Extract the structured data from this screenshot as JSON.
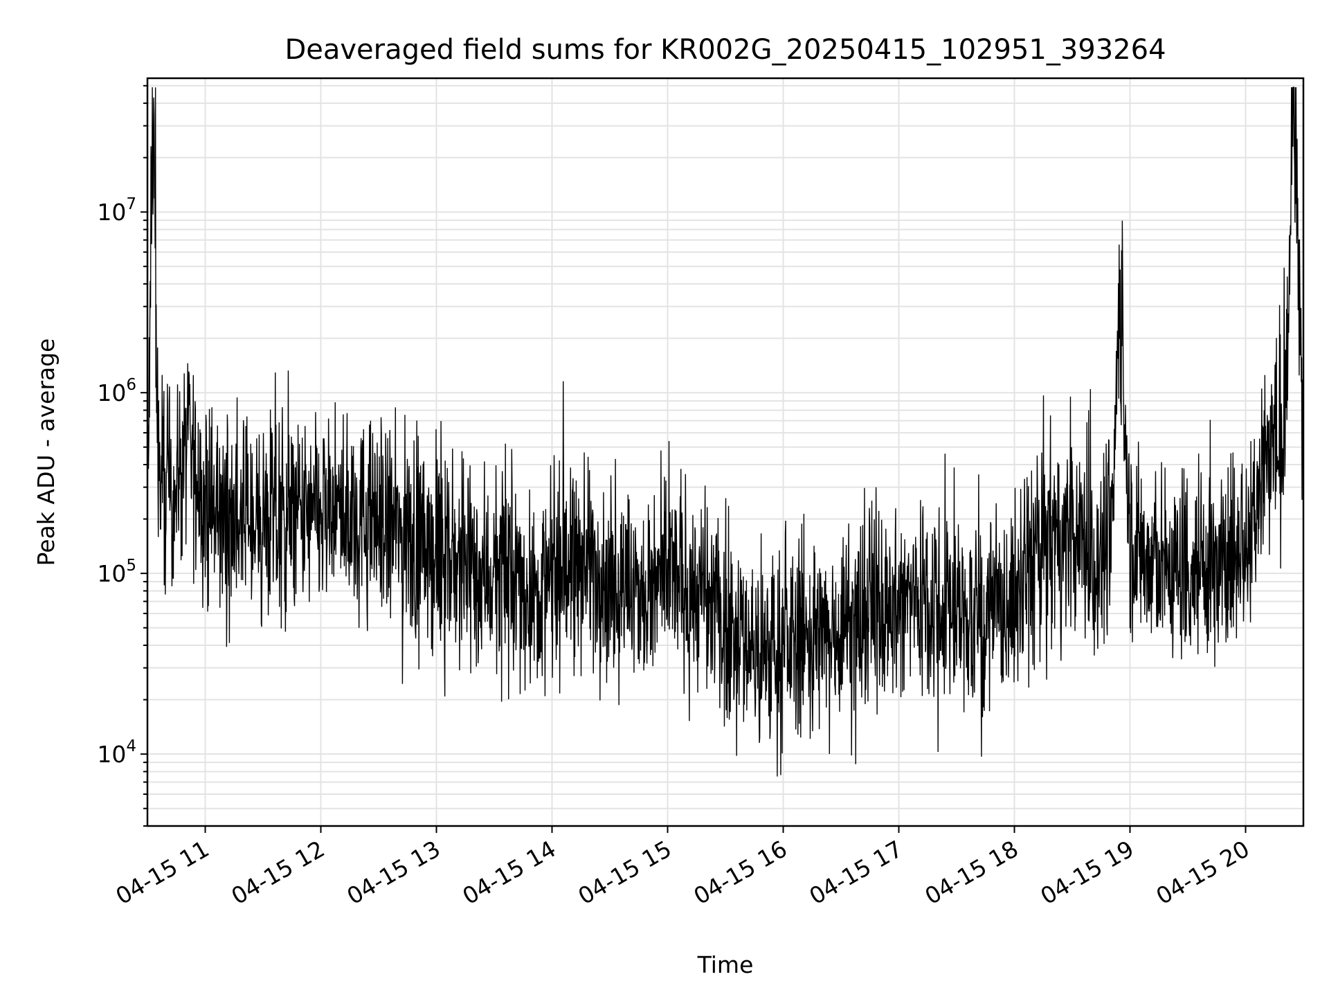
{
  "chart_data": {
    "type": "line",
    "title": "Deaveraged field sums for KR002G_20250415_102951_393264",
    "xlabel": "Time",
    "ylabel": "Peak ADU - average",
    "yscale": "log",
    "ylim": [
      4000,
      55000000
    ],
    "xlim": [
      "04-15 10:30",
      "04-15 20:30"
    ],
    "grid": true,
    "line_color": "#000000",
    "x_ticks": [
      "04-15 11",
      "04-15 12",
      "04-15 13",
      "04-15 14",
      "04-15 15",
      "04-15 16",
      "04-15 17",
      "04-15 18",
      "04-15 19",
      "04-15 20"
    ],
    "y_ticks": [
      {
        "base": "10",
        "exp": "4",
        "value": 10000
      },
      {
        "base": "10",
        "exp": "5",
        "value": 100000
      },
      {
        "base": "10",
        "exp": "6",
        "value": 1000000
      },
      {
        "base": "10",
        "exp": "7",
        "value": 10000000
      }
    ],
    "series": [
      {
        "x": [
          "04-15 10:30",
          "04-15 10:33",
          "04-15 10:36",
          "04-15 10:40",
          "04-15 10:45",
          "04-15 10:50",
          "04-15 10:55",
          "04-15 11:00",
          "04-15 11:10",
          "04-15 11:20",
          "04-15 11:30",
          "04-15 11:40",
          "04-15 11:50",
          "04-15 12:00",
          "04-15 12:10",
          "04-15 12:20",
          "04-15 12:30",
          "04-15 12:40",
          "04-15 12:50",
          "04-15 13:00",
          "04-15 13:10",
          "04-15 13:20",
          "04-15 13:30",
          "04-15 13:40",
          "04-15 13:50",
          "04-15 14:00",
          "04-15 14:10",
          "04-15 14:20",
          "04-15 14:30",
          "04-15 14:40",
          "04-15 14:50",
          "04-15 15:00",
          "04-15 15:10",
          "04-15 15:20",
          "04-15 15:30",
          "04-15 15:40",
          "04-15 15:50",
          "04-15 16:00",
          "04-15 16:10",
          "04-15 16:20",
          "04-15 16:30",
          "04-15 16:40",
          "04-15 16:50",
          "04-15 17:00",
          "04-15 17:10",
          "04-15 17:20",
          "04-15 17:30",
          "04-15 17:40",
          "04-15 17:50",
          "04-15 18:00",
          "04-15 18:10",
          "04-15 18:20",
          "04-15 18:30",
          "04-15 18:40",
          "04-15 18:50",
          "04-15 18:55",
          "04-15 19:00",
          "04-15 19:10",
          "04-15 19:20",
          "04-15 19:30",
          "04-15 19:40",
          "04-15 19:50",
          "04-15 20:00",
          "04-15 20:05",
          "04-15 20:10",
          "04-15 20:15",
          "04-15 20:20",
          "04-15 20:25",
          "04-15 20:30"
        ],
        "y": [
          250000,
          16000000,
          300000,
          280000,
          320000,
          500000,
          380000,
          230000,
          200000,
          210000,
          190000,
          185000,
          195000,
          200000,
          210000,
          200000,
          190000,
          170000,
          150000,
          130000,
          115000,
          105000,
          100000,
          90000,
          80000,
          85000,
          110000,
          120000,
          90000,
          80000,
          70000,
          100000,
          85000,
          70000,
          55000,
          45000,
          35000,
          40000,
          45000,
          42000,
          55000,
          60000,
          70000,
          65000,
          80000,
          75000,
          60000,
          55000,
          60000,
          70000,
          130000,
          160000,
          150000,
          120000,
          140000,
          3300000,
          160000,
          110000,
          105000,
          110000,
          115000,
          105000,
          160000,
          220000,
          500000,
          550000,
          420000,
          36000000,
          600000
        ]
      }
    ]
  }
}
